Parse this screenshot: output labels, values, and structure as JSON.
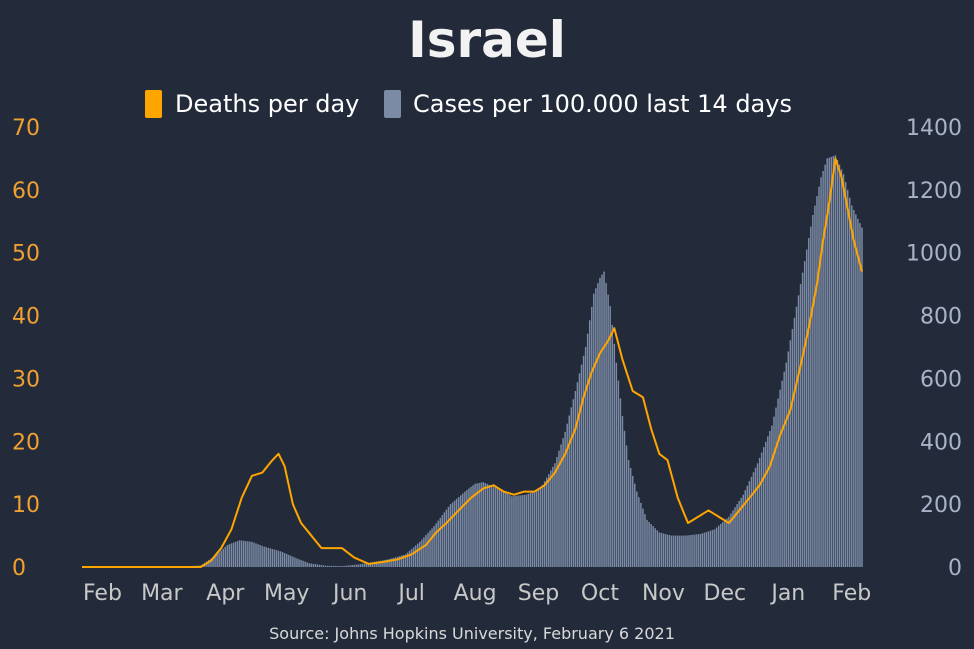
{
  "title": "Israel",
  "source": "Source: Johns Hopkins University, February 6 2021",
  "colors": {
    "background": "#232b3b",
    "deaths": "#ffa500",
    "cases": "#7b8ba6",
    "left_axis_text": "#f0a030",
    "right_axis_text": "#a9b3c8",
    "x_axis_text": "#c8c8c8"
  },
  "chart_data": {
    "type": "bar",
    "title": "Israel",
    "x_start": "2020-01-22",
    "x_end": "2021-02-06",
    "x_tick_labels": [
      "Feb",
      "Mar",
      "Apr",
      "May",
      "Jun",
      "Jul",
      "Aug",
      "Sep",
      "Oct",
      "Nov",
      "Dec",
      "Jan",
      "Feb"
    ],
    "x_tick_dates": [
      "2020-02-01",
      "2020-03-01",
      "2020-04-01",
      "2020-05-01",
      "2020-06-01",
      "2020-07-01",
      "2020-08-01",
      "2020-09-01",
      "2020-10-01",
      "2020-11-01",
      "2020-12-01",
      "2021-01-01",
      "2021-02-01"
    ],
    "legend": [
      "Deaths per day",
      "Cases per 100.000 last 14 days"
    ],
    "left_axis": {
      "label": "",
      "range": [
        0,
        70
      ],
      "ticks": [
        0,
        10,
        20,
        30,
        40,
        50,
        60,
        70
      ]
    },
    "right_axis": {
      "label": "",
      "range": [
        0,
        1400
      ],
      "ticks": [
        0,
        200,
        400,
        600,
        800,
        1000,
        1200,
        1400
      ]
    },
    "series": [
      {
        "name": "Cases per 100.000 last 14 days",
        "type": "bar",
        "axis": "right",
        "points": [
          [
            "2020-01-22",
            0
          ],
          [
            "2020-03-10",
            0
          ],
          [
            "2020-03-20",
            5
          ],
          [
            "2020-03-28",
            40
          ],
          [
            "2020-04-02",
            70
          ],
          [
            "2020-04-08",
            85
          ],
          [
            "2020-04-14",
            80
          ],
          [
            "2020-04-20",
            65
          ],
          [
            "2020-04-28",
            50
          ],
          [
            "2020-05-05",
            30
          ],
          [
            "2020-05-12",
            12
          ],
          [
            "2020-05-20",
            4
          ],
          [
            "2020-05-28",
            3
          ],
          [
            "2020-06-05",
            8
          ],
          [
            "2020-06-12",
            15
          ],
          [
            "2020-06-20",
            25
          ],
          [
            "2020-06-28",
            40
          ],
          [
            "2020-07-05",
            80
          ],
          [
            "2020-07-12",
            130
          ],
          [
            "2020-07-20",
            200
          ],
          [
            "2020-07-28",
            245
          ],
          [
            "2020-08-01",
            265
          ],
          [
            "2020-08-05",
            270
          ],
          [
            "2020-08-12",
            250
          ],
          [
            "2020-08-19",
            225
          ],
          [
            "2020-08-26",
            230
          ],
          [
            "2020-09-02",
            250
          ],
          [
            "2020-09-09",
            330
          ],
          [
            "2020-09-14",
            430
          ],
          [
            "2020-09-19",
            560
          ],
          [
            "2020-09-24",
            700
          ],
          [
            "2020-09-28",
            870
          ],
          [
            "2020-10-01",
            920
          ],
          [
            "2020-10-03",
            940
          ],
          [
            "2020-10-06",
            830
          ],
          [
            "2020-10-09",
            650
          ],
          [
            "2020-10-12",
            480
          ],
          [
            "2020-10-15",
            340
          ],
          [
            "2020-10-19",
            240
          ],
          [
            "2020-10-24",
            150
          ],
          [
            "2020-10-30",
            110
          ],
          [
            "2020-11-05",
            100
          ],
          [
            "2020-11-12",
            100
          ],
          [
            "2020-11-19",
            105
          ],
          [
            "2020-11-26",
            120
          ],
          [
            "2020-12-03",
            160
          ],
          [
            "2020-12-10",
            230
          ],
          [
            "2020-12-17",
            330
          ],
          [
            "2020-12-24",
            450
          ],
          [
            "2020-12-31",
            650
          ],
          [
            "2021-01-07",
            900
          ],
          [
            "2021-01-13",
            1120
          ],
          [
            "2021-01-17",
            1240
          ],
          [
            "2021-01-20",
            1300
          ],
          [
            "2021-01-24",
            1310
          ],
          [
            "2021-01-28",
            1250
          ],
          [
            "2021-02-01",
            1150
          ],
          [
            "2021-02-06",
            1080
          ]
        ]
      },
      {
        "name": "Deaths per day",
        "type": "line",
        "axis": "left",
        "points": [
          [
            "2020-01-22",
            0
          ],
          [
            "2020-03-20",
            0
          ],
          [
            "2020-03-25",
            1
          ],
          [
            "2020-03-30",
            3
          ],
          [
            "2020-04-04",
            6
          ],
          [
            "2020-04-09",
            11
          ],
          [
            "2020-04-14",
            14.5
          ],
          [
            "2020-04-19",
            15
          ],
          [
            "2020-04-24",
            17
          ],
          [
            "2020-04-27",
            18
          ],
          [
            "2020-04-30",
            16
          ],
          [
            "2020-05-04",
            10
          ],
          [
            "2020-05-08",
            7
          ],
          [
            "2020-05-13",
            5
          ],
          [
            "2020-05-18",
            3
          ],
          [
            "2020-05-23",
            3
          ],
          [
            "2020-05-28",
            3
          ],
          [
            "2020-06-03",
            1.5
          ],
          [
            "2020-06-10",
            0.5
          ],
          [
            "2020-06-17",
            0.8
          ],
          [
            "2020-06-24",
            1.2
          ],
          [
            "2020-07-01",
            2
          ],
          [
            "2020-07-08",
            3.5
          ],
          [
            "2020-07-13",
            5.5
          ],
          [
            "2020-07-18",
            7
          ],
          [
            "2020-07-24",
            9
          ],
          [
            "2020-07-30",
            11
          ],
          [
            "2020-08-05",
            12.5
          ],
          [
            "2020-08-10",
            13
          ],
          [
            "2020-08-15",
            12
          ],
          [
            "2020-08-20",
            11.5
          ],
          [
            "2020-08-25",
            12
          ],
          [
            "2020-08-30",
            12
          ],
          [
            "2020-09-04",
            13
          ],
          [
            "2020-09-09",
            15
          ],
          [
            "2020-09-14",
            18
          ],
          [
            "2020-09-19",
            22
          ],
          [
            "2020-09-23",
            27
          ],
          [
            "2020-09-27",
            31
          ],
          [
            "2020-10-01",
            34
          ],
          [
            "2020-10-05",
            36
          ],
          [
            "2020-10-08",
            38
          ],
          [
            "2020-10-12",
            33
          ],
          [
            "2020-10-17",
            28
          ],
          [
            "2020-10-22",
            27
          ],
          [
            "2020-10-26",
            22
          ],
          [
            "2020-10-30",
            18
          ],
          [
            "2020-11-03",
            17
          ],
          [
            "2020-11-08",
            11
          ],
          [
            "2020-11-13",
            7
          ],
          [
            "2020-11-18",
            8
          ],
          [
            "2020-11-23",
            9
          ],
          [
            "2020-11-28",
            8
          ],
          [
            "2020-12-03",
            7
          ],
          [
            "2020-12-08",
            9
          ],
          [
            "2020-12-13",
            11
          ],
          [
            "2020-12-18",
            13
          ],
          [
            "2020-12-23",
            16
          ],
          [
            "2020-12-28",
            21
          ],
          [
            "2021-01-02",
            25
          ],
          [
            "2021-01-07",
            32
          ],
          [
            "2021-01-11",
            38
          ],
          [
            "2021-01-15",
            45
          ],
          [
            "2021-01-18",
            52
          ],
          [
            "2021-01-21",
            58
          ],
          [
            "2021-01-24",
            65
          ],
          [
            "2021-01-27",
            62
          ],
          [
            "2021-01-30",
            57
          ],
          [
            "2021-02-02",
            52
          ],
          [
            "2021-02-06",
            47
          ]
        ]
      }
    ]
  }
}
